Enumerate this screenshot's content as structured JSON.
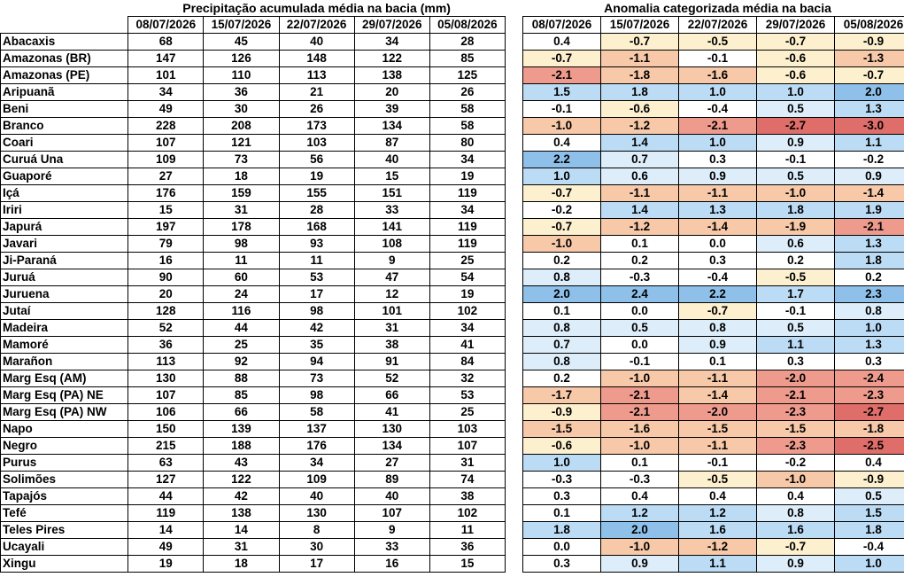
{
  "precip": {
    "title": "Precipitação acumulada média na bacia (mm)",
    "dates": [
      "08/07/2026",
      "15/07/2026",
      "22/07/2026",
      "29/07/2026",
      "05/08/2026"
    ]
  },
  "anomaly": {
    "title": "Anomalia categorizada média na bacia",
    "dates": [
      "08/07/2026",
      "15/07/2026",
      "22/07/2026",
      "29/07/2026",
      "05/08/2026"
    ]
  },
  "rows": [
    {
      "basin": "Abacaxis",
      "precip": [
        "68",
        "45",
        "40",
        "34",
        "28"
      ],
      "anom": [
        "0.4",
        "-0.7",
        "-0.5",
        "-0.7",
        "-0.9"
      ]
    },
    {
      "basin": "Amazonas (BR)",
      "precip": [
        "147",
        "126",
        "148",
        "122",
        "85"
      ],
      "anom": [
        "-0.7",
        "-1.1",
        "-0.1",
        "-0.6",
        "-1.3"
      ]
    },
    {
      "basin": "Amazonas (PE)",
      "precip": [
        "101",
        "110",
        "113",
        "138",
        "125"
      ],
      "anom": [
        "-2.1",
        "-1.8",
        "-1.6",
        "-0.6",
        "-0.7"
      ]
    },
    {
      "basin": "Aripuanã",
      "precip": [
        "34",
        "36",
        "21",
        "20",
        "26"
      ],
      "anom": [
        "1.5",
        "1.8",
        "1.0",
        "1.0",
        "2.0"
      ]
    },
    {
      "basin": "Beni",
      "precip": [
        "49",
        "30",
        "26",
        "39",
        "58"
      ],
      "anom": [
        "-0.1",
        "-0.6",
        "-0.4",
        "0.5",
        "1.3"
      ]
    },
    {
      "basin": "Branco",
      "precip": [
        "228",
        "208",
        "173",
        "134",
        "58"
      ],
      "anom": [
        "-1.0",
        "-1.2",
        "-2.1",
        "-2.7",
        "-3.0"
      ]
    },
    {
      "basin": "Coari",
      "precip": [
        "107",
        "121",
        "103",
        "87",
        "80"
      ],
      "anom": [
        "0.4",
        "1.4",
        "1.0",
        "0.9",
        "1.1"
      ]
    },
    {
      "basin": "Curuá Una",
      "precip": [
        "109",
        "73",
        "56",
        "40",
        "34"
      ],
      "anom": [
        "2.2",
        "0.7",
        "0.3",
        "-0.1",
        "-0.2"
      ]
    },
    {
      "basin": "Guaporé",
      "precip": [
        "27",
        "18",
        "19",
        "15",
        "19"
      ],
      "anom": [
        "1.0",
        "0.6",
        "0.9",
        "0.5",
        "0.9"
      ]
    },
    {
      "basin": "Içá",
      "precip": [
        "176",
        "159",
        "155",
        "151",
        "119"
      ],
      "anom": [
        "-0.7",
        "-1.1",
        "-1.1",
        "-1.0",
        "-1.4"
      ]
    },
    {
      "basin": "Iriri",
      "precip": [
        "15",
        "31",
        "28",
        "33",
        "34"
      ],
      "anom": [
        "-0.2",
        "1.4",
        "1.3",
        "1.8",
        "1.9"
      ]
    },
    {
      "basin": "Japurá",
      "precip": [
        "197",
        "178",
        "168",
        "141",
        "119"
      ],
      "anom": [
        "-0.7",
        "-1.2",
        "-1.4",
        "-1.9",
        "-2.1"
      ]
    },
    {
      "basin": "Javari",
      "precip": [
        "79",
        "98",
        "93",
        "108",
        "119"
      ],
      "anom": [
        "-1.0",
        "0.1",
        "0.0",
        "0.6",
        "1.3"
      ]
    },
    {
      "basin": "Ji-Paraná",
      "precip": [
        "16",
        "11",
        "11",
        "9",
        "25"
      ],
      "anom": [
        "0.2",
        "0.2",
        "0.3",
        "0.2",
        "1.8"
      ]
    },
    {
      "basin": "Juruá",
      "precip": [
        "90",
        "60",
        "53",
        "47",
        "54"
      ],
      "anom": [
        "0.8",
        "-0.3",
        "-0.4",
        "-0.5",
        "0.2"
      ]
    },
    {
      "basin": "Juruena",
      "precip": [
        "20",
        "24",
        "17",
        "12",
        "19"
      ],
      "anom": [
        "2.0",
        "2.4",
        "2.2",
        "1.7",
        "2.3"
      ]
    },
    {
      "basin": "Jutaí",
      "precip": [
        "128",
        "116",
        "98",
        "101",
        "102"
      ],
      "anom": [
        "0.1",
        "0.0",
        "-0.7",
        "-0.1",
        "0.8"
      ]
    },
    {
      "basin": "Madeira",
      "precip": [
        "52",
        "44",
        "42",
        "31",
        "34"
      ],
      "anom": [
        "0.8",
        "0.5",
        "0.8",
        "0.5",
        "1.0"
      ]
    },
    {
      "basin": "Mamoré",
      "precip": [
        "36",
        "25",
        "35",
        "38",
        "41"
      ],
      "anom": [
        "0.7",
        "0.0",
        "0.9",
        "1.1",
        "1.3"
      ]
    },
    {
      "basin": "Marañon",
      "precip": [
        "113",
        "92",
        "94",
        "91",
        "84"
      ],
      "anom": [
        "0.8",
        "-0.1",
        "0.1",
        "0.3",
        "0.3"
      ]
    },
    {
      "basin": "Marg Esq (AM)",
      "precip": [
        "130",
        "88",
        "73",
        "52",
        "32"
      ],
      "anom": [
        "0.2",
        "-1.0",
        "-1.1",
        "-2.0",
        "-2.4"
      ]
    },
    {
      "basin": "Marg Esq (PA) NE",
      "precip": [
        "107",
        "85",
        "98",
        "66",
        "53"
      ],
      "anom": [
        "-1.7",
        "-2.1",
        "-1.4",
        "-2.1",
        "-2.3"
      ]
    },
    {
      "basin": "Marg Esq (PA) NW",
      "precip": [
        "106",
        "66",
        "58",
        "41",
        "25"
      ],
      "anom": [
        "-0.9",
        "-2.1",
        "-2.0",
        "-2.3",
        "-2.7"
      ]
    },
    {
      "basin": "Napo",
      "precip": [
        "150",
        "139",
        "137",
        "130",
        "103"
      ],
      "anom": [
        "-1.5",
        "-1.6",
        "-1.5",
        "-1.5",
        "-1.8"
      ]
    },
    {
      "basin": "Negro",
      "precip": [
        "215",
        "188",
        "176",
        "134",
        "107"
      ],
      "anom": [
        "-0.6",
        "-1.0",
        "-1.1",
        "-2.3",
        "-2.5"
      ]
    },
    {
      "basin": "Purus",
      "precip": [
        "63",
        "43",
        "34",
        "27",
        "31"
      ],
      "anom": [
        "1.0",
        "0.1",
        "-0.1",
        "-0.2",
        "0.4"
      ]
    },
    {
      "basin": "Solimões",
      "precip": [
        "127",
        "122",
        "109",
        "89",
        "74"
      ],
      "anom": [
        "-0.3",
        "-0.3",
        "-0.5",
        "-1.0",
        "-0.9"
      ]
    },
    {
      "basin": "Tapajós",
      "precip": [
        "44",
        "42",
        "40",
        "40",
        "38"
      ],
      "anom": [
        "0.3",
        "0.4",
        "0.4",
        "0.4",
        "0.5"
      ]
    },
    {
      "basin": "Tefé",
      "precip": [
        "119",
        "138",
        "130",
        "107",
        "102"
      ],
      "anom": [
        "0.1",
        "1.2",
        "1.2",
        "0.8",
        "1.5"
      ]
    },
    {
      "basin": "Teles Pires",
      "precip": [
        "14",
        "14",
        "8",
        "9",
        "11"
      ],
      "anom": [
        "1.8",
        "2.0",
        "1.6",
        "1.6",
        "1.8"
      ]
    },
    {
      "basin": "Ucayali",
      "precip": [
        "49",
        "31",
        "30",
        "33",
        "36"
      ],
      "anom": [
        "0.0",
        "-1.0",
        "-1.2",
        "-0.7",
        "-0.4"
      ]
    },
    {
      "basin": "Xingu",
      "precip": [
        "19",
        "18",
        "17",
        "16",
        "15"
      ],
      "anom": [
        "0.3",
        "0.9",
        "1.1",
        "0.9",
        "1.0"
      ]
    }
  ],
  "colors": {
    "neutral": "#ffffff",
    "wet_light": "#ddeefa",
    "wet_mid": "#bcdcf5",
    "wet_strong": "#8ec0ea",
    "dry_light": "#fdf0cf",
    "dry_mid": "#f7c9a8",
    "dry_strong": "#ee9b8e",
    "dry_extreme": "#df6e6a"
  }
}
